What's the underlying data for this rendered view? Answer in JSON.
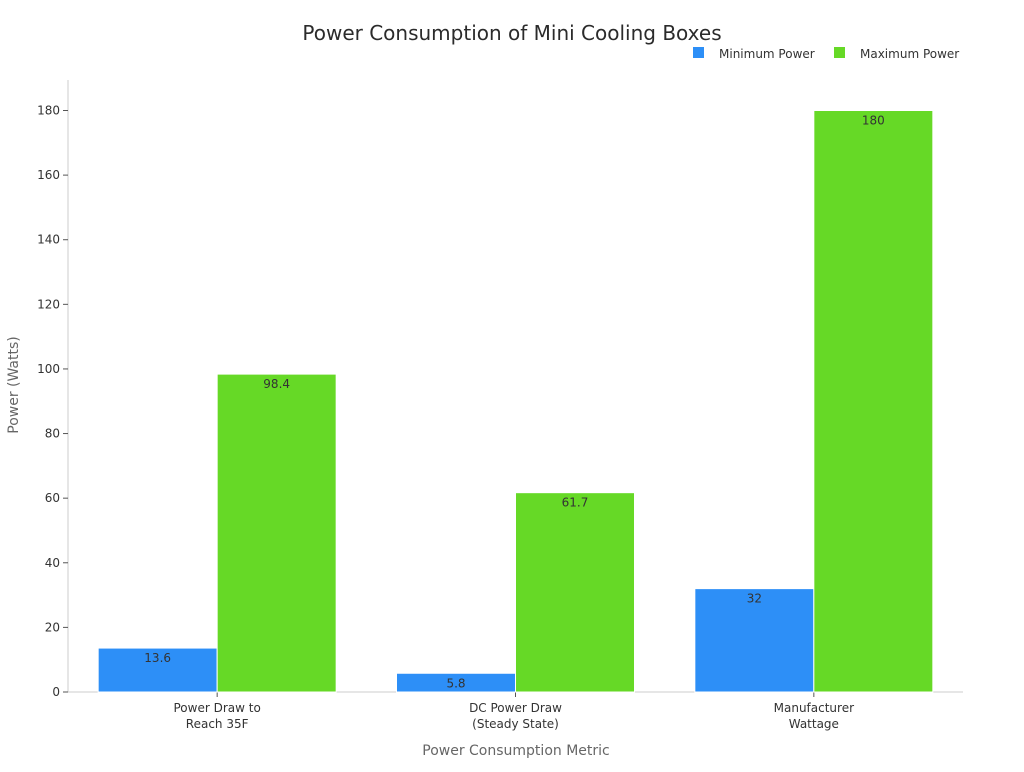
{
  "chart_data": {
    "type": "bar",
    "title": "Power Consumption of Mini Cooling Boxes",
    "xlabel": "Power Consumption Metric",
    "ylabel": "Power (Watts)",
    "categories": [
      [
        "Power Draw to",
        "Reach 35F"
      ],
      [
        "DC Power Draw",
        "(Steady State)"
      ],
      [
        "Manufacturer",
        "Wattage"
      ]
    ],
    "series": [
      {
        "name": "Minimum Power",
        "color": "#2d8ff7",
        "values": [
          13.6,
          5.8,
          32
        ],
        "labels": [
          "13.6",
          "5.8",
          "32"
        ]
      },
      {
        "name": "Maximum Power",
        "color": "#66d926",
        "values": [
          98.4,
          61.7,
          180
        ],
        "labels": [
          "98.4",
          "61.7",
          "180"
        ]
      }
    ],
    "ylim": [
      0,
      190
    ],
    "yticks": [
      0,
      20,
      40,
      60,
      80,
      100,
      120,
      140,
      160,
      180
    ],
    "legend_position": "top-right",
    "grid": false
  }
}
